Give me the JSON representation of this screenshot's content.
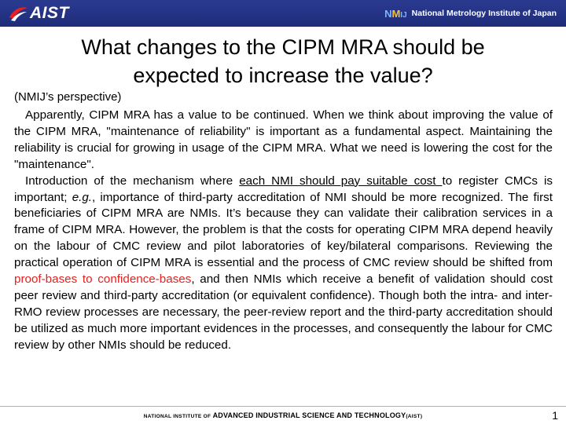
{
  "header": {
    "aist_logo_text": "AIST",
    "nmij_mark": {
      "n": "N",
      "m": "M",
      "i": "IJ"
    },
    "nmij_name": "National Metrology Institute of Japan"
  },
  "slide": {
    "title_line1": "What changes to the CIPM MRA should be",
    "title_line2": "expected to increase the value?",
    "perspective": "(NMIJ’s perspective)",
    "para1": "Apparently, CIPM MRA has a value to be continued.  When we think about improving the value of the CIPM MRA, \"maintenance of reliability\" is important as a fundamental aspect.  Maintaining the reliability is crucial for growing in usage of the CIPM MRA.  What we need is lowering the cost for the \"maintenance\".",
    "para2_a": "Introduction of the mechanism where ",
    "para2_underlined": "each NMI should pay suitable cost ",
    "para2_b": "to register CMCs is important; ",
    "para2_eg": "e.g.",
    "para2_c": ", importance of third-party accreditation of NMI should be more recognized.  The first beneficiaries of CIPM MRA are NMIs.  It’s because they can validate their calibration services in a frame of CIPM MRA.  However, the problem is that the costs for operating CIPM MRA depend heavily on the labour of CMC review and pilot laboratories of key/bilateral comparisons.  Reviewing the practical operation of CIPM MRA is essential and the process of CMC review should be shifted from ",
    "para2_red": "proof-bases to confidence-bases",
    "para2_d": ", and then NMIs which receive a benefit of validation should cost peer review and third-party accreditation (or equivalent confidence). Though both the intra- and inter-RMO review processes are necessary, the peer-review report and the third-party accreditation should be utilized as much more important evidences in the processes, and consequently the labour for CMC review by other NMIs should be reduced."
  },
  "footer": {
    "prefix": "NATIONAL INSTITUTE OF",
    "name": "ADVANCED INDUSTRIAL SCIENCE AND TECHNOLOGY",
    "abbr": "(AIST)",
    "page": "1"
  },
  "colors": {
    "header_bar": "#1f2c7a",
    "highlight_red": "#e8201f"
  }
}
